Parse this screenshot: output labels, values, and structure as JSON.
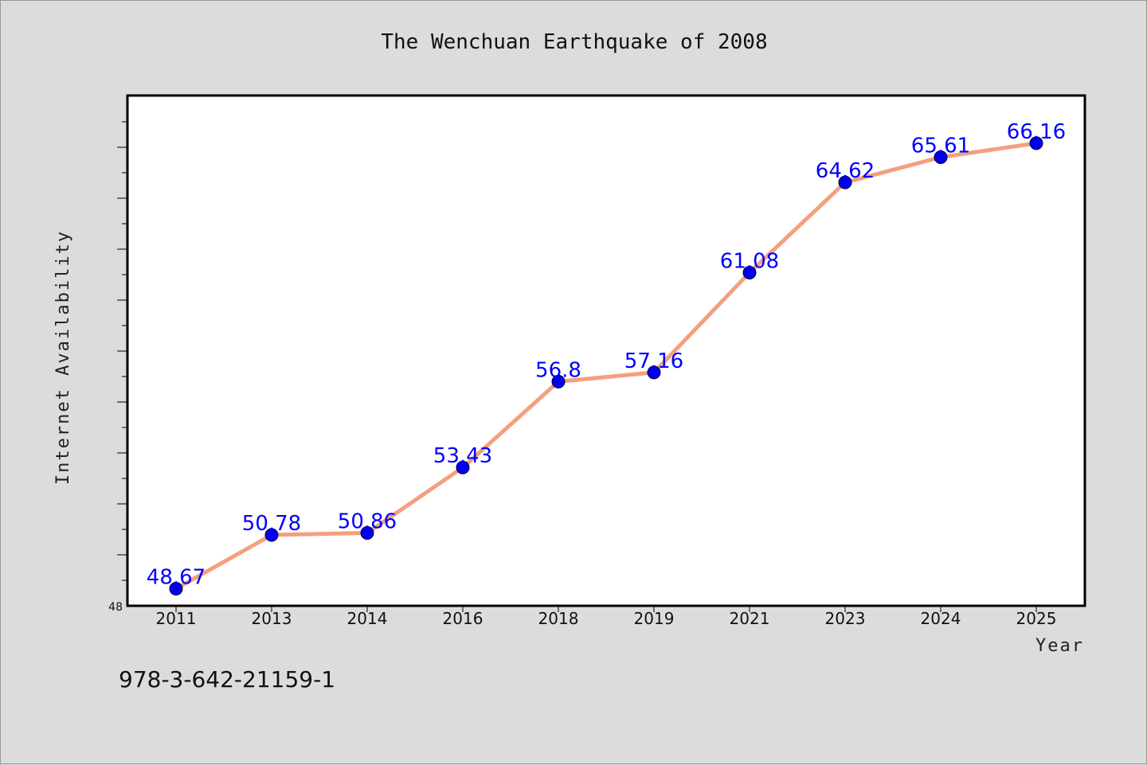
{
  "chart_data": {
    "type": "line",
    "title": "The Wenchuan Earthquake of 2008",
    "xlabel": "Year",
    "ylabel": "Internet Availability",
    "categories": [
      "2011",
      "2013",
      "2014",
      "2016",
      "2018",
      "2019",
      "2021",
      "2023",
      "2024",
      "2025"
    ],
    "series": [
      {
        "values": [
          48.67,
          50.78,
          50.86,
          53.43,
          56.8,
          57.16,
          61.08,
          64.62,
          65.61,
          66.16
        ],
        "data_labels": [
          "48.67",
          "50.78",
          "50.86",
          "53.43",
          "56.8",
          "57.16",
          "61.08",
          "64.62",
          "65.61",
          "66.16"
        ]
      }
    ],
    "ylim": [
      48,
      68
    ],
    "y_tick_labels": [
      "48"
    ],
    "grid": false,
    "legend": "none",
    "line_color": "#f4a07e",
    "marker_color": "#0000ee",
    "label_color": "#0000ff",
    "plot_background": "#ffffff",
    "page_background": "#dcdcdc"
  },
  "footer": {
    "isbn": "978-3-642-21159-1"
  }
}
